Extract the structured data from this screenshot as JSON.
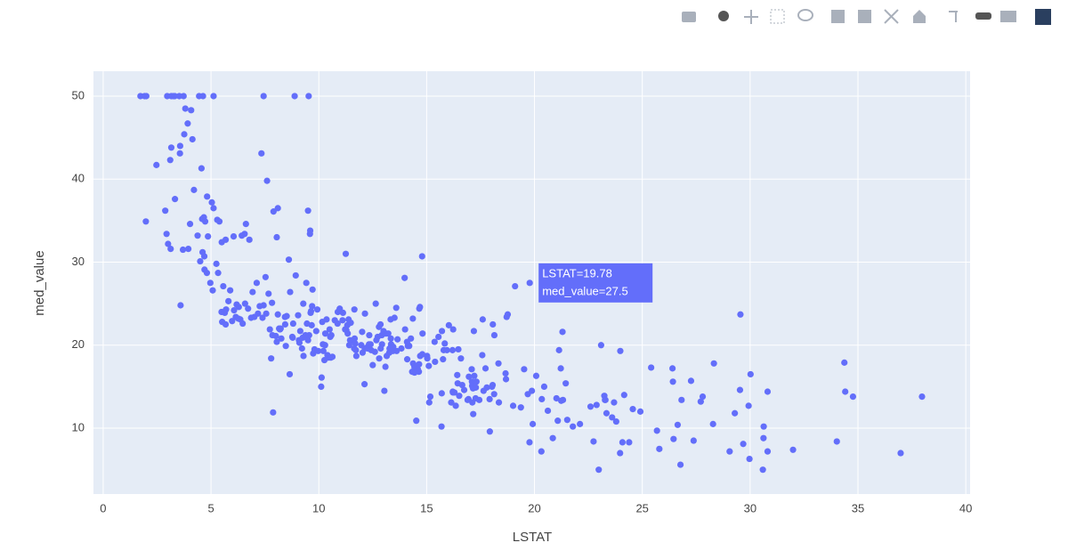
{
  "chart_data": {
    "type": "scatter",
    "color": "#636efa",
    "x_label": "LSTAT",
    "y_label": "med_value",
    "xlim": [
      -0.45,
      40.2
    ],
    "ylim": [
      2.07,
      53.0
    ],
    "xticks": [
      0,
      5,
      10,
      15,
      20,
      25,
      30,
      35,
      40
    ],
    "yticks": [
      10,
      20,
      30,
      40,
      50
    ],
    "grid": true,
    "hover": {
      "x": 19.78,
      "y": 27.5,
      "text": [
        "LSTAT=19.78",
        "med_value=27.5"
      ]
    },
    "x": [
      1.73,
      1.92,
      2.0,
      2.97,
      3.16,
      3.26,
      3.32,
      3.53,
      3.73,
      4.45,
      4.63,
      5.12,
      7.44,
      8.88,
      9.53,
      2.47,
      1.98,
      2.88,
      3.11,
      3.16,
      3.33,
      3.56,
      3.57,
      3.76,
      3.81,
      3.92,
      4.08,
      4.14,
      4.56,
      4.21,
      4.59,
      4.67,
      4.73,
      4.82,
      4.86,
      5.04,
      5.12,
      5.29,
      5.39,
      5.5,
      5.68,
      6.05,
      6.36,
      6.43,
      6.56,
      6.62,
      6.78,
      7.34,
      7.6,
      7.9,
      8.1,
      9.5,
      9.6,
      8.05,
      2.94,
      3.01,
      3.13,
      3.59,
      3.7,
      3.95,
      4.03,
      4.38,
      4.5,
      4.61,
      4.69,
      4.7,
      4.81,
      4.97,
      5.08,
      5.25,
      5.33,
      5.49,
      5.52,
      5.57,
      5.64,
      5.68,
      5.7,
      5.81,
      5.89,
      5.98,
      6.07,
      6.15,
      6.19,
      6.27,
      6.29,
      6.47,
      6.58,
      6.72,
      6.86,
      6.93,
      7.01,
      7.12,
      7.18,
      7.26,
      7.39,
      7.44,
      7.53,
      7.56,
      7.67,
      7.73,
      7.79,
      7.83,
      7.85,
      7.88,
      8.01,
      8.05,
      8.1,
      8.16,
      8.2,
      8.23,
      8.26,
      8.43,
      8.44,
      8.47,
      8.51,
      8.61,
      8.65,
      8.67,
      8.77,
      8.79,
      8.81,
      8.93,
      9.04,
      9.08,
      9.1,
      9.14,
      9.22,
      9.25,
      9.28,
      9.29,
      9.38,
      9.42,
      9.45,
      9.5,
      9.55,
      9.59,
      9.62,
      9.64,
      9.67,
      9.69,
      9.71,
      9.74,
      9.8,
      9.88,
      9.93,
      9.97,
      10.11,
      10.13,
      10.16,
      10.19,
      10.21,
      10.26,
      10.29,
      10.3,
      10.36,
      10.4,
      10.45,
      10.5,
      10.53,
      10.56,
      10.58,
      10.63,
      10.74,
      10.87,
      10.88,
      10.97,
      11.1,
      11.12,
      11.22,
      11.25,
      11.28,
      11.32,
      11.34,
      11.38,
      11.41,
      11.45,
      11.48,
      11.5,
      11.64,
      11.65,
      11.66,
      11.69,
      11.72,
      11.74,
      11.97,
      12.01,
      12.03,
      12.12,
      12.13,
      12.14,
      12.26,
      12.27,
      12.33,
      12.34,
      12.4,
      12.43,
      12.5,
      12.6,
      12.64,
      12.67,
      12.73,
      12.79,
      12.8,
      12.86,
      12.87,
      12.92,
      12.93,
      13.0,
      13.04,
      13.09,
      13.11,
      13.15,
      13.22,
      13.27,
      13.28,
      13.33,
      13.34,
      13.35,
      13.44,
      13.45,
      13.51,
      13.59,
      13.61,
      13.65,
      13.83,
      13.98,
      14.0,
      14.09,
      14.1,
      14.13,
      14.15,
      14.19,
      14.27,
      14.33,
      14.36,
      14.37,
      14.43,
      14.44,
      14.52,
      14.59,
      14.64,
      14.65,
      14.66,
      14.69,
      14.7,
      14.79,
      14.8,
      14.81,
      15.02,
      15.03,
      15.1,
      15.12,
      15.17,
      15.37,
      15.39,
      15.55,
      15.69,
      15.7,
      15.71,
      15.76,
      15.79,
      15.84,
      15.94,
      16.03,
      16.14,
      16.2,
      16.21,
      16.22,
      16.23,
      16.29,
      16.35,
      16.42,
      16.44,
      16.47,
      16.51,
      16.59,
      16.65,
      16.74,
      16.9,
      16.94,
      16.96,
      17.09,
      17.1,
      17.11,
      17.12,
      17.15,
      17.16,
      17.19,
      17.21,
      17.27,
      17.28,
      17.31,
      17.44,
      17.58,
      17.6,
      17.64,
      17.73,
      17.79,
      17.92,
      17.93,
      18.03,
      18.06,
      18.07,
      18.13,
      18.14,
      18.33,
      18.35,
      18.66,
      18.68,
      18.71,
      18.76,
      19.01,
      19.1,
      19.37,
      19.52,
      19.69,
      19.77,
      19.78,
      19.88,
      19.92,
      20.08,
      20.32,
      20.34,
      20.45,
      20.62,
      20.85,
      21.02,
      21.08,
      21.14,
      21.22,
      21.24,
      21.32,
      21.45,
      21.52,
      21.78,
      22.11,
      22.6,
      22.74,
      22.88,
      22.98,
      23.09,
      23.24,
      23.27,
      23.29,
      23.34,
      23.6,
      23.69,
      23.79,
      23.97,
      24.08,
      24.16,
      24.39,
      24.56,
      24.91,
      25.41,
      25.68,
      25.79,
      26.4,
      26.42,
      26.45,
      26.64,
      26.77,
      26.82,
      27.26,
      27.38,
      27.71,
      27.8,
      28.28,
      28.32,
      29.05,
      29.29,
      29.53,
      29.55,
      29.68,
      29.93,
      29.97,
      30.59,
      30.62,
      30.63,
      30.81,
      30.81,
      31.99,
      34.02,
      34.37,
      34.41,
      34.77,
      36.98,
      37.97,
      30.02,
      21.3,
      23.98
    ],
    "values": [
      50,
      50,
      50,
      50,
      50,
      50,
      50,
      50,
      50,
      50,
      50,
      50,
      50,
      50,
      50,
      41.7,
      34.9,
      36.2,
      42.3,
      43.8,
      37.6,
      43.1,
      44.0,
      45.4,
      48.5,
      46.7,
      48.3,
      44.8,
      41.3,
      38.7,
      35.2,
      35.4,
      34.9,
      37.9,
      33.1,
      37.2,
      36.5,
      35.1,
      34.9,
      32.4,
      32.7,
      33.1,
      23.1,
      33.2,
      33.4,
      34.6,
      32.7,
      43.1,
      39.8,
      36.1,
      36.5,
      36.2,
      33.8,
      33.0,
      33.4,
      32.2,
      31.6,
      24.8,
      31.5,
      31.6,
      34.6,
      33.2,
      30.1,
      31.2,
      30.7,
      29.1,
      28.7,
      27.5,
      26.6,
      29.8,
      28.7,
      24.0,
      22.8,
      27.1,
      23.9,
      22.5,
      24.3,
      25.3,
      26.6,
      22.9,
      24.2,
      23.4,
      24.9,
      23.2,
      24.6,
      22.6,
      25.0,
      24.4,
      23.3,
      26.4,
      23.4,
      27.5,
      23.8,
      24.7,
      23.3,
      24.8,
      28.2,
      23.8,
      26.2,
      21.9,
      18.4,
      25.1,
      21.2,
      11.9,
      21.1,
      20.4,
      23.7,
      22.0,
      21.9,
      22.0,
      20.8,
      23.4,
      22.5,
      19.9,
      23.5,
      30.3,
      16.5,
      26.4,
      21.0,
      20.9,
      22.6,
      28.4,
      23.6,
      20.6,
      20.3,
      21.7,
      19.6,
      20.9,
      25.0,
      18.7,
      21.2,
      27.5,
      22.6,
      20.6,
      21.2,
      33.4,
      23.9,
      24.1,
      22.4,
      24.7,
      26.7,
      19.0,
      19.5,
      21.7,
      24.3,
      19.3,
      15.0,
      16.1,
      22.8,
      20.1,
      19.3,
      18.2,
      20.0,
      21.4,
      23.1,
      18.8,
      18.5,
      21.9,
      21.0,
      18.5,
      21.2,
      18.6,
      23.0,
      22.6,
      24.0,
      24.4,
      23.0,
      23.9,
      21.9,
      31.0,
      21.8,
      22.4,
      21.4,
      23.1,
      20.0,
      20.6,
      22.7,
      20.5,
      19.6,
      24.3,
      20.8,
      20.2,
      19.4,
      18.7,
      20.0,
      21.6,
      19.1,
      15.3,
      19.6,
      23.8,
      19.6,
      19.8,
      20.1,
      21.2,
      20.1,
      19.4,
      17.6,
      19.2,
      25.0,
      20.6,
      21.0,
      22.2,
      18.4,
      22.5,
      19.6,
      21.2,
      20.1,
      21.7,
      14.5,
      17.4,
      21.4,
      18.7,
      21.4,
      19.1,
      19.6,
      23.1,
      20.8,
      20.1,
      19.3,
      19.8,
      23.3,
      24.5,
      19.3,
      20.7,
      19.6,
      28.1,
      21.9,
      20.4,
      18.3,
      19.9,
      20.0,
      19.9,
      20.8,
      16.8,
      23.2,
      17.8,
      17.4,
      16.7,
      10.9,
      17.1,
      16.8,
      17.7,
      24.4,
      24.6,
      18.7,
      30.7,
      18.9,
      21.4,
      18.7,
      18.4,
      17.5,
      13.1,
      13.8,
      20.4,
      18.0,
      21.0,
      10.2,
      14.2,
      21.7,
      18.3,
      19.4,
      20.2,
      19.4,
      22.4,
      13.1,
      19.4,
      14.4,
      14.3,
      21.9,
      14.3,
      12.7,
      16.4,
      15.4,
      19.5,
      13.9,
      18.4,
      15.2,
      14.6,
      13.4,
      13.5,
      16.2,
      17.1,
      15.6,
      15.1,
      13.1,
      14.8,
      11.7,
      21.7,
      16.3,
      13.6,
      14.9,
      15.6,
      13.4,
      18.8,
      23.1,
      14.5,
      17.2,
      14.9,
      13.5,
      9.6,
      15.0,
      15.2,
      22.5,
      14.1,
      21.2,
      17.8,
      13.1,
      16.6,
      15.9,
      23.4,
      23.7,
      12.7,
      27.1,
      12.5,
      17.1,
      14.1,
      8.3,
      27.5,
      14.5,
      10.5,
      16.3,
      7.2,
      13.5,
      15.0,
      12.1,
      8.8,
      13.6,
      10.9,
      19.4,
      17.2,
      13.3,
      13.4,
      15.4,
      11.0,
      10.2,
      10.5,
      12.6,
      8.4,
      12.8,
      5.0,
      20.0,
      13.9,
      13.4,
      13.4,
      11.8,
      11.3,
      13.1,
      10.8,
      7.0,
      8.3,
      14.0,
      8.3,
      12.3,
      12.0,
      17.3,
      9.7,
      7.5,
      17.2,
      15.6,
      8.7,
      10.4,
      5.6,
      13.4,
      15.7,
      8.5,
      13.2,
      13.8,
      10.5,
      17.8,
      7.2,
      11.8,
      14.6,
      23.7,
      8.1,
      12.7,
      6.3,
      5.0,
      8.8,
      10.2,
      7.2,
      14.4,
      7.4,
      8.4,
      17.9,
      14.4,
      13.8,
      7.0,
      13.8,
      16.5,
      21.6,
      19.3
    ]
  }
}
